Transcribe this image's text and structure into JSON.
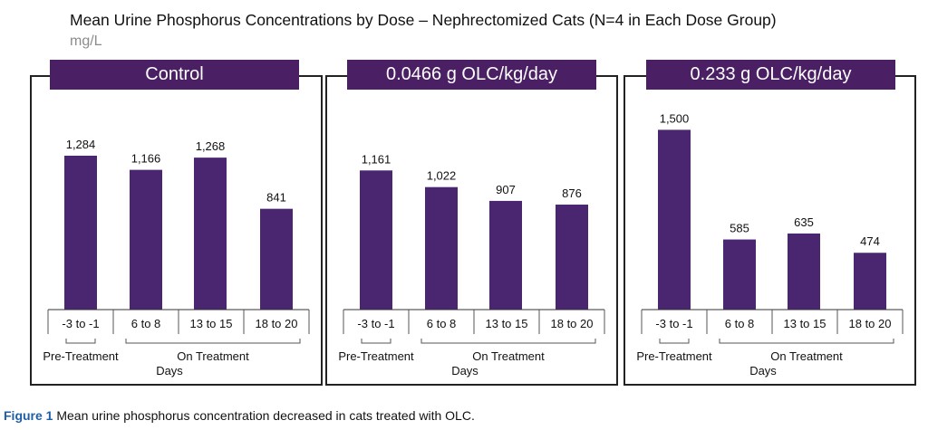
{
  "chart_data": {
    "type": "bar",
    "title": "Mean Urine Phosphorus Concentrations by Dose – Nephrectomized Cats (N=4 in Each Dose Group)",
    "unit_label": "mg/L",
    "categories": [
      "-3 to -1",
      "6 to 8",
      "13 to 15",
      "18 to 20"
    ],
    "pre_label": "Pre-Treatment",
    "on_label": "On Treatment",
    "xlabel": "Days",
    "ylim": [
      0,
      1550
    ],
    "bar_color": "#4a2670",
    "panels": [
      {
        "name": "Control",
        "values": [
          1284,
          1166,
          1268,
          841
        ],
        "labels": [
          "1,284",
          "1,166",
          "1,268",
          "841"
        ]
      },
      {
        "name": "0.0466 g OLC/kg/day",
        "values": [
          1161,
          1022,
          907,
          876
        ],
        "labels": [
          "1,161",
          "1,022",
          "907",
          "876"
        ]
      },
      {
        "name": "0.233 g OLC/kg/day",
        "values": [
          1500,
          585,
          635,
          474
        ],
        "labels": [
          "1,500",
          "585",
          "635",
          "474"
        ]
      }
    ]
  },
  "caption": {
    "figure_label": "Figure 1",
    "text": "Mean urine phosphorus concentration decreased in cats treated with OLC."
  },
  "colors": {
    "header_bg": "#4a1f63",
    "bar": "#4a2670",
    "caption_label": "#1f5fa8",
    "unit_text": "#8c8c8c"
  }
}
